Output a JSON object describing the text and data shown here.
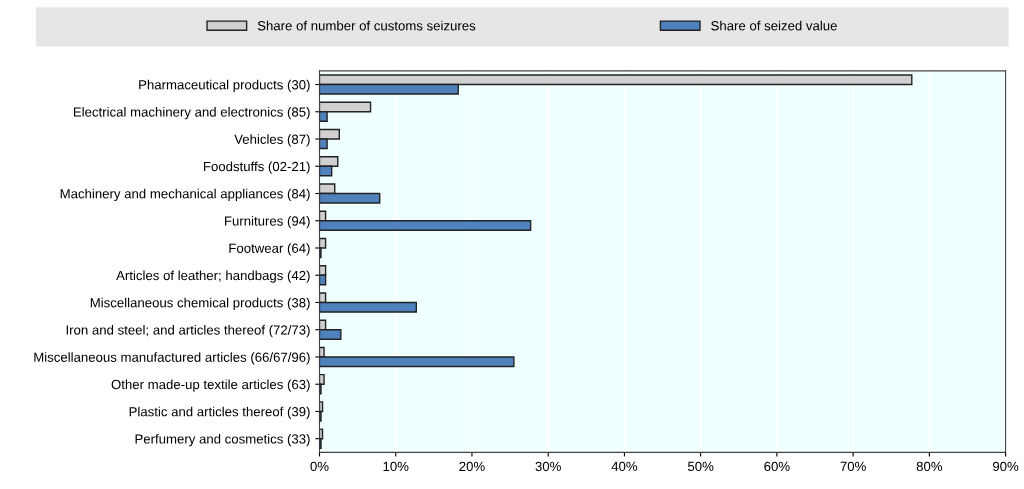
{
  "chart_data": {
    "type": "bar",
    "orientation": "horizontal",
    "categories": [
      "Pharmaceutical products (30)",
      "Electrical machinery and electronics (85)",
      "Vehicles (87)",
      "Foodstuffs (02-21)",
      "Machinery and mechanical appliances (84)",
      "Furnitures (94)",
      "Footwear (64)",
      "Articles of leather; handbags (42)",
      "Miscellaneous chemical products (38)",
      "Iron and steel; and articles thereof (72/73)",
      "Miscellaneous manufactured articles (66/67/96)",
      "Other made-up textile articles (63)",
      "Plastic and articles thereof (39)",
      "Perfumery and cosmetics (33)"
    ],
    "series": [
      {
        "name": "Share of number of customs seizures",
        "color": "#d0d0d0",
        "values": [
          77.7,
          6.7,
          2.6,
          2.4,
          2.0,
          0.8,
          0.8,
          0.8,
          0.8,
          0.8,
          0.6,
          0.6,
          0.4,
          0.4
        ]
      },
      {
        "name": "Share of seized value",
        "color": "#4f81bd",
        "values": [
          18.2,
          1.0,
          1.0,
          1.6,
          7.9,
          27.7,
          0.2,
          0.8,
          12.7,
          2.8,
          25.5,
          0.2,
          0.2,
          0.2
        ]
      }
    ],
    "xlim": [
      0,
      90
    ],
    "xticks": [
      {
        "value": 0,
        "label": "0%"
      },
      {
        "value": 10,
        "label": "10%"
      },
      {
        "value": 20,
        "label": "20%"
      },
      {
        "value": 30,
        "label": "30%"
      },
      {
        "value": 40,
        "label": "40%"
      },
      {
        "value": 50,
        "label": "50%"
      },
      {
        "value": 60,
        "label": "60%"
      },
      {
        "value": 70,
        "label": "70%"
      },
      {
        "value": 80,
        "label": "80%"
      },
      {
        "value": 90,
        "label": "90%"
      }
    ],
    "grid": "x",
    "legend": "top"
  }
}
